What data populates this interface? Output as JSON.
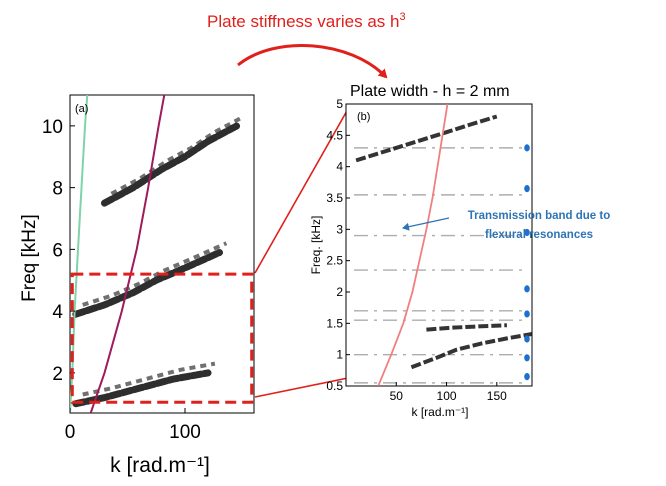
{
  "figure": {
    "top_caption": "Plate stiffness varies as h",
    "top_caption_exp": "3",
    "panel_b_title": "Plate width -  h = 2 mm",
    "annotation": [
      "Transmission band due to",
      "flexural resonances"
    ],
    "colors": {
      "accent_red": "#e0201b",
      "annotation_blue": "#2e74b5",
      "dot_blue": "#1f6fd0",
      "green_curve": "#7fd3a8",
      "purple_curve": "#9e1a5a",
      "salmon_curve": "#f08080"
    }
  },
  "chart_data": [
    {
      "type": "heatmap",
      "panel_label": "(a)",
      "xlabel": "k [rad.m⁻¹]",
      "ylabel": "Freq [kHz]",
      "x_ticks": [
        "0",
        "100"
      ],
      "y_ticks": [
        "2",
        "4",
        "6",
        "8",
        "10"
      ],
      "xlim": [
        0,
        160
      ],
      "ylim": [
        0.7,
        11
      ],
      "curves": [
        {
          "color": "green",
          "points": [
            [
              0,
              0.7
            ],
            [
              2,
              2
            ],
            [
              4,
              4
            ],
            [
              7,
              6
            ],
            [
              10,
              8
            ],
            [
              13,
              10
            ],
            [
              15,
              11
            ]
          ]
        },
        {
          "color": "purple",
          "points": [
            [
              18,
              0.7
            ],
            [
              30,
              2
            ],
            [
              45,
              4
            ],
            [
              58,
              6
            ],
            [
              68,
              8
            ],
            [
              77,
              10
            ],
            [
              82,
              11
            ]
          ]
        }
      ],
      "bands": [
        {
          "points": [
            [
              5,
              1.0
            ],
            [
              30,
              1.2
            ],
            [
              60,
              1.5
            ],
            [
              90,
              1.8
            ],
            [
              120,
              2.0
            ]
          ]
        },
        {
          "points": [
            [
              5,
              3.9
            ],
            [
              30,
              4.2
            ],
            [
              55,
              4.6
            ],
            [
              75,
              5.0
            ],
            [
              100,
              5.4
            ],
            [
              130,
              5.9
            ]
          ]
        },
        {
          "points": [
            [
              30,
              7.5
            ],
            [
              55,
              8.0
            ],
            [
              80,
              8.6
            ],
            [
              100,
              9.0
            ],
            [
              120,
              9.5
            ],
            [
              145,
              10.0
            ]
          ]
        }
      ],
      "highlight_box": {
        "k_range": [
          2,
          158
        ],
        "freq_range": [
          1.05,
          5.2
        ]
      }
    },
    {
      "type": "heatmap",
      "panel_label": "(b)",
      "xlabel": "k [rad.m⁻¹]",
      "ylabel": "Freq. [kHz]",
      "x_ticks": [
        "50",
        "100",
        "150"
      ],
      "y_ticks": [
        "0.5",
        "1",
        "1.5",
        "2",
        "2.5",
        "3",
        "3.5",
        "4",
        "4.5",
        "5"
      ],
      "xlim": [
        0,
        185
      ],
      "ylim": [
        0.5,
        5
      ],
      "curves": [
        {
          "color": "salmon",
          "points": [
            [
              32,
              0.5
            ],
            [
              45,
              1.0
            ],
            [
              57,
              1.5
            ],
            [
              66,
              2.0
            ],
            [
              73,
              2.5
            ],
            [
              80,
              3.0
            ],
            [
              86,
              3.5
            ],
            [
              91,
              4.0
            ],
            [
              96,
              4.5
            ],
            [
              101,
              5.0
            ]
          ]
        }
      ],
      "bands": [
        {
          "points": [
            [
              65,
              0.8
            ],
            [
              90,
              0.95
            ],
            [
              110,
              1.08
            ],
            [
              135,
              1.18
            ],
            [
              160,
              1.26
            ],
            [
              185,
              1.33
            ]
          ]
        },
        {
          "points": [
            [
              80,
              1.4
            ],
            [
              105,
              1.43
            ],
            [
              130,
              1.45
            ],
            [
              160,
              1.47
            ]
          ]
        },
        {
          "points": [
            [
              10,
              4.1
            ],
            [
              40,
              4.25
            ],
            [
              70,
              4.4
            ],
            [
              100,
              4.55
            ],
            [
              125,
              4.68
            ],
            [
              150,
              4.8
            ]
          ]
        }
      ],
      "faint_lines": [
        4.3,
        3.55,
        2.9,
        2.35,
        1.7,
        1.55,
        1.0,
        0.55
      ],
      "dots_freq": [
        0.65,
        0.95,
        1.25,
        1.65,
        2.05,
        2.95,
        3.65,
        4.3
      ]
    }
  ]
}
